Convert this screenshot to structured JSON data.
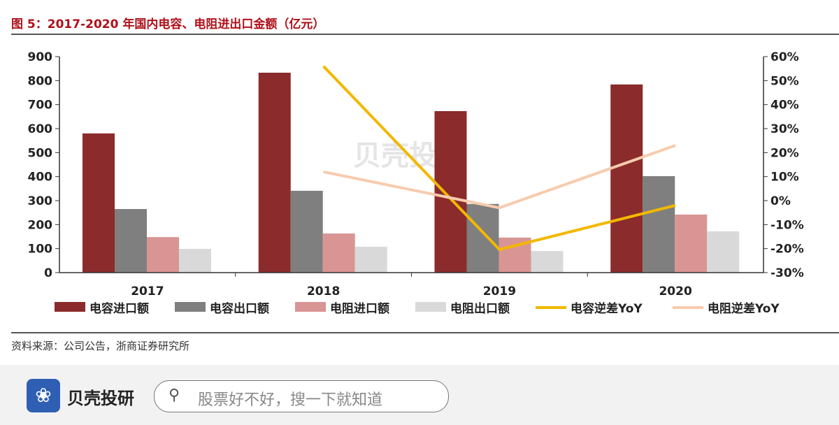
{
  "title": "图 5：2017-2020 年国内电容、电阻进出口金额（亿元）",
  "source": "资料来源：公司公告，浙商证券研究所",
  "watermark": "贝壳投研",
  "footer": {
    "brand": "贝壳投研",
    "search_placeholder": "股票好不好，搜一下就知道",
    "logo_icon": "shell-logo-icon",
    "search_icon": "search-icon"
  },
  "chart_data": {
    "type": "bar",
    "categories": [
      "2017",
      "2018",
      "2019",
      "2020"
    ],
    "series": [
      {
        "name": "电容进口额",
        "type": "bar",
        "axis": "left",
        "color": "#8b2b2b",
        "values": [
          580,
          833,
          673,
          784
        ]
      },
      {
        "name": "电容出口额",
        "type": "bar",
        "axis": "left",
        "color": "#7f7f7f",
        "values": [
          265,
          341,
          286,
          402
        ]
      },
      {
        "name": "电阻进口额",
        "type": "bar",
        "axis": "left",
        "color": "#d99594",
        "values": [
          148,
          163,
          146,
          242
        ]
      },
      {
        "name": "电阻出口额",
        "type": "bar",
        "axis": "left",
        "color": "#d9d9d9",
        "values": [
          99,
          108,
          90,
          172
        ]
      },
      {
        "name": "电容逆差YoY",
        "type": "line",
        "axis": "right",
        "color": "#f2b800",
        "values": [
          null,
          56,
          -20.4,
          -2
        ]
      },
      {
        "name": "电阻逆差YoY",
        "type": "line",
        "axis": "right",
        "color": "#f8cbad",
        "values": [
          null,
          12,
          -3,
          23
        ]
      }
    ],
    "yleft": {
      "min": 0,
      "max": 900,
      "ticks": [
        "0",
        "100",
        "200",
        "300",
        "400",
        "500",
        "600",
        "700",
        "800",
        "900"
      ]
    },
    "yright": {
      "min": -30,
      "max": 60,
      "ticks": [
        "-30%",
        "-20%",
        "-10%",
        "0%",
        "10%",
        "20%",
        "30%",
        "40%",
        "50%",
        "60%"
      ]
    },
    "legend": "bottom"
  }
}
